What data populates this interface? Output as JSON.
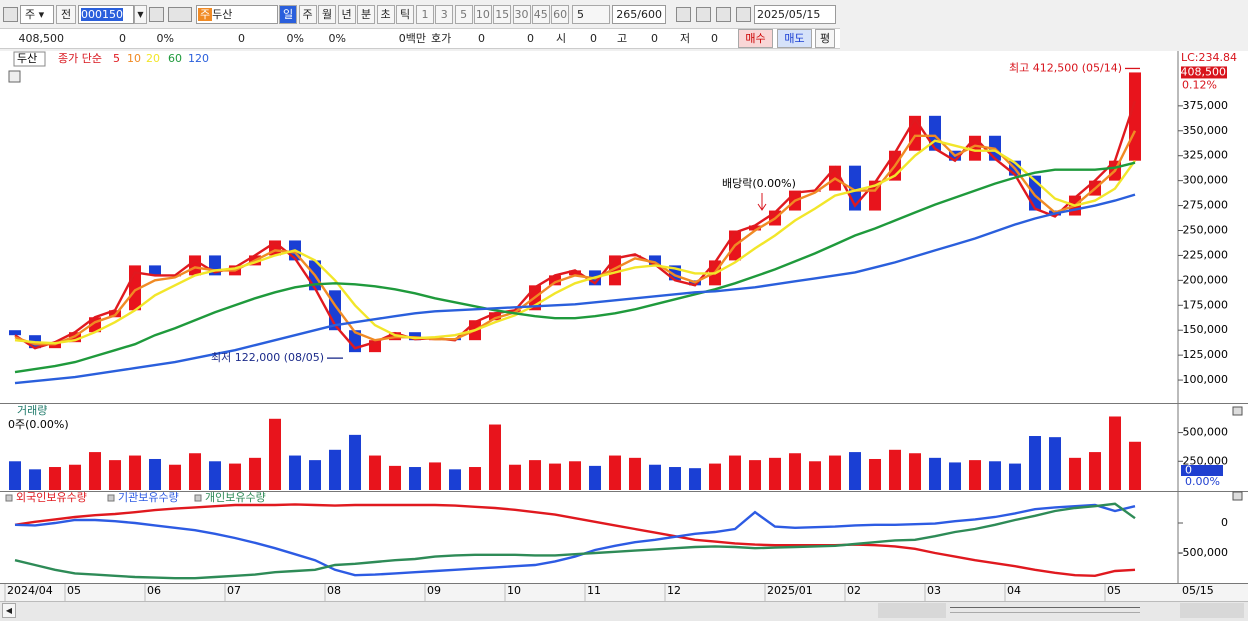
{
  "toolbar": {
    "market": "주",
    "prev": "전",
    "code": "000150",
    "name_badge": "주",
    "name": "두산",
    "periods": [
      "일",
      "주",
      "월",
      "년",
      "분",
      "초",
      "틱"
    ],
    "intervals": [
      "1",
      "3",
      "5",
      "10",
      "15",
      "30",
      "45",
      "60"
    ],
    "interval_value": "5",
    "count": "265/600",
    "date": "2025/05/15"
  },
  "quote_bar": {
    "price": "408,500",
    "change": "0",
    "change_pct": "0%",
    "volume": "0",
    "volume_pct": "0%",
    "pct3": "0%",
    "amount": "0백만",
    "bid_ask": "호가",
    "bid": "0",
    "ask": "0",
    "open_label": "시",
    "open": "0",
    "high_label": "고",
    "high": "0",
    "low_label": "저",
    "low": "0",
    "buttons": [
      "매수",
      "매도",
      "평"
    ]
  },
  "chart_data": [
    {
      "type": "candlestick",
      "title": "두산",
      "legend_label": "종가 단순",
      "x_end_label": "05/15",
      "categories": [
        "2024/04",
        null,
        null,
        "05",
        null,
        null,
        null,
        "06",
        null,
        null,
        null,
        "07",
        null,
        null,
        null,
        null,
        "08",
        null,
        null,
        null,
        null,
        "09",
        null,
        null,
        null,
        "10",
        null,
        null,
        null,
        "11",
        null,
        null,
        null,
        "12",
        null,
        null,
        null,
        null,
        "2025/01",
        null,
        null,
        null,
        "02",
        null,
        null,
        null,
        "03",
        null,
        null,
        null,
        "04",
        null,
        null,
        null,
        null,
        "05",
        null
      ],
      "open": [
        150000,
        145000,
        132000,
        138000,
        148000,
        163000,
        170000,
        215000,
        205000,
        205000,
        225000,
        205000,
        215000,
        225000,
        240000,
        220000,
        190000,
        150000,
        128000,
        140000,
        148000,
        140000,
        142000,
        140000,
        160000,
        168000,
        170000,
        195000,
        205000,
        210000,
        195000,
        225000,
        225000,
        215000,
        200000,
        195000,
        220000,
        250000,
        255000,
        270000,
        290000,
        290000,
        315000,
        270000,
        300000,
        330000,
        365000,
        330000,
        320000,
        345000,
        320000,
        305000,
        270000,
        265000,
        285000,
        300000,
        320000
      ],
      "close": [
        145000,
        132000,
        138000,
        148000,
        163000,
        170000,
        215000,
        205000,
        205000,
        225000,
        205000,
        215000,
        225000,
        240000,
        220000,
        190000,
        150000,
        128000,
        140000,
        148000,
        140000,
        142000,
        140000,
        160000,
        168000,
        170000,
        195000,
        205000,
        210000,
        195000,
        225000,
        225000,
        215000,
        200000,
        195000,
        220000,
        250000,
        255000,
        270000,
        290000,
        290000,
        315000,
        270000,
        300000,
        330000,
        365000,
        330000,
        320000,
        345000,
        320000,
        305000,
        270000,
        265000,
        285000,
        300000,
        320000,
        408500
      ],
      "up_color": "#e8141c",
      "down_color": "#1a3fd4",
      "series": [
        {
          "name": "5",
          "color": "#e0191f",
          "values": [
            145000,
            132000,
            138000,
            148000,
            163000,
            170000,
            208000,
            205000,
            205000,
            220000,
            208000,
            213000,
            225000,
            238000,
            222000,
            192000,
            155000,
            132000,
            138000,
            147000,
            141000,
            142000,
            140000,
            158000,
            167000,
            170000,
            193000,
            205000,
            210000,
            197000,
            222000,
            226000,
            216000,
            200000,
            195000,
            218000,
            248000,
            255000,
            268000,
            288000,
            290000,
            313000,
            275000,
            298000,
            328000,
            362000,
            332000,
            320000,
            343000,
            322000,
            306000,
            272000,
            264000,
            283000,
            300000,
            320000,
            380000
          ]
        },
        {
          "name": "10",
          "color": "#f08a24",
          "values": [
            143000,
            136000,
            136000,
            144000,
            158000,
            165000,
            190000,
            200000,
            203000,
            213000,
            210000,
            210000,
            220000,
            230000,
            228000,
            205000,
            175000,
            148000,
            140000,
            143000,
            143000,
            141000,
            141000,
            150000,
            162000,
            168000,
            183000,
            198000,
            205000,
            202000,
            212000,
            222000,
            218000,
            205000,
            198000,
            208000,
            235000,
            250000,
            262000,
            280000,
            288000,
            302000,
            290000,
            290000,
            315000,
            345000,
            345000,
            325000,
            335000,
            332000,
            312000,
            285000,
            268000,
            275000,
            292000,
            310000,
            350000
          ]
        },
        {
          "name": "20",
          "color": "#f2e62a",
          "values": [
            140000,
            138000,
            137000,
            140000,
            148000,
            158000,
            170000,
            185000,
            195000,
            205000,
            210000,
            212000,
            218000,
            225000,
            230000,
            220000,
            200000,
            175000,
            155000,
            145000,
            142000,
            143000,
            145000,
            150000,
            158000,
            165000,
            175000,
            187000,
            197000,
            203000,
            208000,
            213000,
            215000,
            212000,
            207000,
            207000,
            218000,
            232000,
            245000,
            260000,
            272000,
            285000,
            290000,
            295000,
            305000,
            325000,
            340000,
            335000,
            330000,
            330000,
            318000,
            300000,
            282000,
            275000,
            280000,
            292000,
            320000
          ]
        },
        {
          "name": "60",
          "color": "#1f9a3c",
          "values": [
            108000,
            111000,
            114000,
            118000,
            124000,
            130000,
            136000,
            145000,
            152000,
            160000,
            168000,
            175000,
            182000,
            188000,
            193000,
            196000,
            197000,
            196000,
            194000,
            191000,
            187000,
            182000,
            178000,
            174000,
            170000,
            167000,
            164000,
            162000,
            162000,
            164000,
            167000,
            171000,
            176000,
            181000,
            186000,
            191000,
            197000,
            204000,
            211000,
            219000,
            227000,
            236000,
            245000,
            252000,
            260000,
            268000,
            276000,
            283000,
            290000,
            297000,
            303000,
            308000,
            311000,
            311000,
            311000,
            313000,
            318000
          ]
        },
        {
          "name": "120",
          "color": "#2a5fdc",
          "values": [
            97000,
            99000,
            101000,
            103000,
            106000,
            109000,
            112000,
            115000,
            118000,
            122000,
            126000,
            130000,
            135000,
            140000,
            145000,
            150000,
            155000,
            158000,
            161000,
            164000,
            167000,
            169000,
            170000,
            171000,
            172000,
            173000,
            174000,
            175000,
            176000,
            178000,
            180000,
            182000,
            184000,
            186000,
            188000,
            189000,
            191000,
            193000,
            196000,
            199000,
            202000,
            205000,
            208000,
            213000,
            218000,
            224000,
            230000,
            236000,
            242000,
            249000,
            256000,
            262000,
            267000,
            271000,
            275000,
            280000,
            286000
          ]
        }
      ],
      "ylim": [
        77000,
        429000
      ],
      "yticks": [
        {
          "value": 100000,
          "label": "100,000"
        },
        {
          "value": 125000,
          "label": "125,000"
        },
        {
          "value": 150000,
          "label": "150,000"
        },
        {
          "value": 175000,
          "label": "175,000"
        },
        {
          "value": 200000,
          "label": "200,000"
        },
        {
          "value": 225000,
          "label": "225,000"
        },
        {
          "value": 250000,
          "label": "250,000"
        },
        {
          "value": 275000,
          "label": "275,000"
        },
        {
          "value": 300000,
          "label": "300,000"
        },
        {
          "value": 325000,
          "label": "325,000"
        },
        {
          "value": 350000,
          "label": "350,000"
        },
        {
          "value": 375000,
          "label": "375,000"
        }
      ],
      "annotations": [
        {
          "text": "최고 412,500 (05/14)",
          "value": 412500,
          "color": "#d8141c"
        },
        {
          "text": "최저 122,000 (08/05)",
          "value": 122000,
          "color": "#1b2a8a"
        },
        {
          "text": "배당락(0.00%)"
        }
      ],
      "lc_label": "LC:234.84",
      "current": {
        "value": 408500,
        "label": "408,500"
      },
      "current_change": "0.12%"
    },
    {
      "type": "bar",
      "title": "거래량",
      "subtitle": "0주(0.00%)",
      "values": [
        250000,
        180000,
        200000,
        220000,
        330000,
        260000,
        300000,
        270000,
        220000,
        320000,
        250000,
        230000,
        280000,
        620000,
        300000,
        260000,
        350000,
        480000,
        300000,
        210000,
        200000,
        240000,
        180000,
        200000,
        570000,
        220000,
        260000,
        230000,
        250000,
        210000,
        300000,
        280000,
        220000,
        200000,
        190000,
        230000,
        300000,
        260000,
        280000,
        320000,
        250000,
        300000,
        330000,
        270000,
        350000,
        320000,
        280000,
        240000,
        260000,
        250000,
        230000,
        470000,
        460000,
        280000,
        330000,
        640000,
        420000
      ],
      "ylim": [
        0,
        740000
      ],
      "yticks": [
        {
          "value": 250000,
          "label": "250,000"
        },
        {
          "value": 500000,
          "label": "500,000"
        }
      ],
      "current_label": "0",
      "current_pct": "0.00%"
    },
    {
      "type": "line",
      "series": [
        {
          "name": "외국인보유수량",
          "color": "#e0191f",
          "values": [
            -30000,
            20000,
            60000,
            100000,
            130000,
            150000,
            180000,
            215000,
            240000,
            260000,
            280000,
            300000,
            300000,
            300000,
            310000,
            300000,
            290000,
            300000,
            300000,
            300000,
            300000,
            300000,
            290000,
            270000,
            250000,
            220000,
            180000,
            140000,
            80000,
            20000,
            -40000,
            -100000,
            -160000,
            -220000,
            -280000,
            -310000,
            -340000,
            -360000,
            -370000,
            -370000,
            -370000,
            -370000,
            -360000,
            -370000,
            -390000,
            -430000,
            -500000,
            -560000,
            -620000,
            -670000,
            -720000,
            -780000,
            -830000,
            -870000,
            -880000,
            -800000,
            -780000
          ]
        },
        {
          "name": "기관보유수량",
          "color": "#2d5be3",
          "values": [
            -30000,
            -40000,
            0,
            50000,
            50000,
            30000,
            0,
            -40000,
            -80000,
            -120000,
            -180000,
            -250000,
            -330000,
            -420000,
            -520000,
            -620000,
            -780000,
            -870000,
            -860000,
            -840000,
            -820000,
            -800000,
            -780000,
            -760000,
            -740000,
            -720000,
            -700000,
            -640000,
            -560000,
            -450000,
            -380000,
            -320000,
            -280000,
            -230000,
            -180000,
            -150000,
            -100000,
            180000,
            -60000,
            -80000,
            -70000,
            -60000,
            -40000,
            -30000,
            -30000,
            -20000,
            -10000,
            30000,
            60000,
            100000,
            160000,
            230000,
            260000,
            280000,
            300000,
            200000,
            280000
          ]
        },
        {
          "name": "개인보유수량",
          "color": "#2e8b57",
          "values": [
            -620000,
            -700000,
            -780000,
            -840000,
            -860000,
            -880000,
            -900000,
            -910000,
            -920000,
            -920000,
            -900000,
            -880000,
            -860000,
            -820000,
            -800000,
            -780000,
            -700000,
            -680000,
            -650000,
            -620000,
            -600000,
            -560000,
            -540000,
            -530000,
            -530000,
            -530000,
            -540000,
            -540000,
            -520000,
            -500000,
            -480000,
            -460000,
            -440000,
            -420000,
            -400000,
            -390000,
            -400000,
            -420000,
            -410000,
            -400000,
            -390000,
            -380000,
            -350000,
            -320000,
            -290000,
            -280000,
            -220000,
            -150000,
            -100000,
            -30000,
            50000,
            120000,
            200000,
            250000,
            280000,
            320000,
            80000
          ]
        }
      ],
      "ylim": [
        -1000000,
        517000
      ],
      "yticks": [
        0,
        {
          "value": -500000,
          "label": "-500,000"
        }
      ]
    }
  ]
}
